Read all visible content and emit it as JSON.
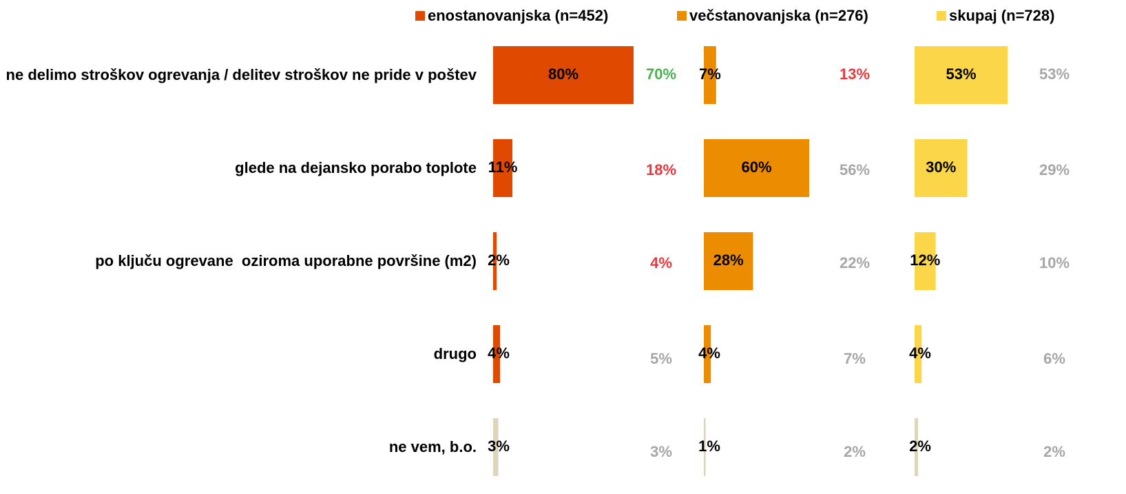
{
  "chart_data": {
    "type": "bar",
    "categories": [
      "ne delimo stroškov ogrevanja / delitev stroškov ne pride v poštev",
      "glede na dejansko porabo toplote",
      "po ključu ogrevane  oziroma uporabne površine (m2)",
      "drugo",
      "ne vem, b.o."
    ],
    "series": [
      {
        "name": "enostanovanjska (n=452)",
        "color": "#e04a00",
        "colors": [
          "#e04a00",
          "#e04a00",
          "#e04a00",
          "#e04a00",
          "#ddd6bc"
        ],
        "values": [
          80,
          11,
          2,
          4,
          3
        ],
        "value_labels": [
          "80%",
          "11%",
          "2%",
          "4%",
          "3%"
        ],
        "comparison": [
          70,
          18,
          4,
          5,
          3
        ],
        "comparison_labels": [
          "70%",
          "18%",
          "4%",
          "5%",
          "3%"
        ],
        "comparison_colors": [
          "#4caf50",
          "#e8383d",
          "#e8383d",
          "#a6a6a6",
          "#a6a6a6"
        ]
      },
      {
        "name": "večstanovanjska (n=276)",
        "color": "#ec8c00",
        "colors": [
          "#ec8c00",
          "#ec8c00",
          "#ec8c00",
          "#ec8c00",
          "#ddd6bc"
        ],
        "values": [
          7,
          60,
          28,
          4,
          1
        ],
        "value_labels": [
          "7%",
          "60%",
          "28%",
          "4%",
          "1%"
        ],
        "comparison": [
          13,
          56,
          22,
          7,
          2
        ],
        "comparison_labels": [
          "13%",
          "56%",
          "22%",
          "7%",
          "2%"
        ],
        "comparison_colors": [
          "#e8383d",
          "#a6a6a6",
          "#a6a6a6",
          "#a6a6a6",
          "#a6a6a6"
        ]
      },
      {
        "name": "skupaj (n=728)",
        "color": "#fad648",
        "colors": [
          "#fad648",
          "#fad648",
          "#fad648",
          "#fad648",
          "#ddd6bc"
        ],
        "values": [
          53,
          30,
          12,
          4,
          2
        ],
        "value_labels": [
          "53%",
          "30%",
          "12%",
          "4%",
          "2%"
        ],
        "comparison": [
          53,
          29,
          10,
          6,
          2
        ],
        "comparison_labels": [
          "53%",
          "29%",
          "10%",
          "6%",
          "2%"
        ],
        "comparison_colors": [
          "#a6a6a6",
          "#a6a6a6",
          "#a6a6a6",
          "#a6a6a6",
          "#a6a6a6"
        ]
      }
    ]
  }
}
